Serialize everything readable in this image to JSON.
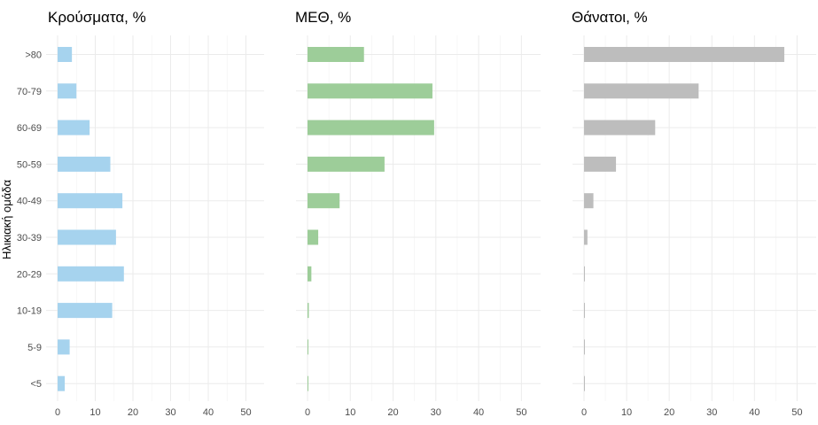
{
  "chart_data": [
    {
      "type": "bar",
      "orientation": "horizontal",
      "title": "Κρούσματα, %",
      "ylabel": "Ηλικιακή ομάδα",
      "categories": [
        ">80",
        "70-79",
        "60-69",
        "50-59",
        "40-49",
        "30-39",
        "20-29",
        "10-19",
        "5-9",
        "<5"
      ],
      "values": [
        3.8,
        5.0,
        8.5,
        14.0,
        17.2,
        15.5,
        17.6,
        14.5,
        3.2,
        1.9
      ],
      "xlim": [
        0,
        52
      ],
      "xticks": [
        "0",
        "10",
        "20",
        "30",
        "40",
        "50"
      ],
      "color": "#a6d3ee",
      "grid": true
    },
    {
      "type": "bar",
      "orientation": "horizontal",
      "title": "ΜΕΘ, %",
      "categories": [
        ">80",
        "70-79",
        "60-69",
        "50-59",
        "40-49",
        "30-39",
        "20-29",
        "10-19",
        "5-9",
        "<5"
      ],
      "values": [
        13.2,
        29.2,
        29.6,
        18.0,
        7.5,
        2.5,
        0.9,
        0.3,
        0.2,
        0.2
      ],
      "xlim": [
        0,
        52
      ],
      "xticks": [
        "0",
        "10",
        "20",
        "30",
        "40",
        "50"
      ],
      "color": "#9dcd99",
      "grid": true
    },
    {
      "type": "bar",
      "orientation": "horizontal",
      "title": "Θάνατοι, %",
      "categories": [
        ">80",
        "70-79",
        "60-69",
        "50-59",
        "40-49",
        "30-39",
        "20-29",
        "10-19",
        "5-9",
        "<5"
      ],
      "values": [
        47.0,
        26.9,
        16.7,
        7.5,
        2.2,
        0.8,
        0.2,
        0.1,
        0.0,
        0.1
      ],
      "xlim": [
        0,
        52
      ],
      "xticks": [
        "0",
        "10",
        "20",
        "30",
        "40",
        "50"
      ],
      "color": "#bdbdbd",
      "grid": true
    }
  ]
}
